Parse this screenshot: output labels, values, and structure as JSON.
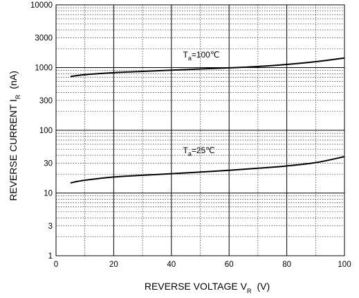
{
  "chart_data": {
    "type": "line",
    "xlabel": {
      "main": "REVERSE VOLTAGE   V",
      "sub": "R",
      "unit": "(V)"
    },
    "ylabel": {
      "main": "REVERSE CURRENT   I",
      "sub": "R",
      "unit": "(nA)"
    },
    "xlim": [
      0,
      100
    ],
    "ylim": [
      1,
      10000
    ],
    "yscale": "log",
    "grid": true,
    "x_ticks": [
      0,
      20,
      40,
      60,
      80,
      100
    ],
    "x_tick_labels": [
      "0",
      "20",
      "40",
      "60",
      "80",
      "100"
    ],
    "y_ticks": [
      1,
      3,
      10,
      30,
      100,
      300,
      1000,
      3000,
      10000
    ],
    "y_tick_labels": [
      "1",
      "3",
      "10",
      "30",
      "100",
      "300",
      "1000",
      "3000",
      "10000"
    ],
    "series": [
      {
        "name": "Ta=100℃",
        "label_main": "T",
        "label_sub": "a",
        "label_rest": "=100℃",
        "label_at": {
          "x": 44,
          "y": 1450
        },
        "color": "#000000",
        "x": [
          5,
          10,
          20,
          30,
          40,
          50,
          60,
          70,
          80,
          90,
          100
        ],
        "y": [
          720,
          770,
          830,
          870,
          910,
          950,
          990,
          1040,
          1120,
          1240,
          1420
        ]
      },
      {
        "name": "Ta=25℃",
        "label_main": "T",
        "label_sub": "a",
        "label_rest": "=25℃",
        "label_at": {
          "x": 44,
          "y": 43
        },
        "color": "#000000",
        "x": [
          5,
          10,
          20,
          30,
          40,
          50,
          60,
          70,
          80,
          90,
          100
        ],
        "y": [
          14.5,
          16,
          18,
          19.2,
          20.3,
          21.6,
          23,
          24.8,
          27,
          30.5,
          38
        ]
      }
    ]
  }
}
